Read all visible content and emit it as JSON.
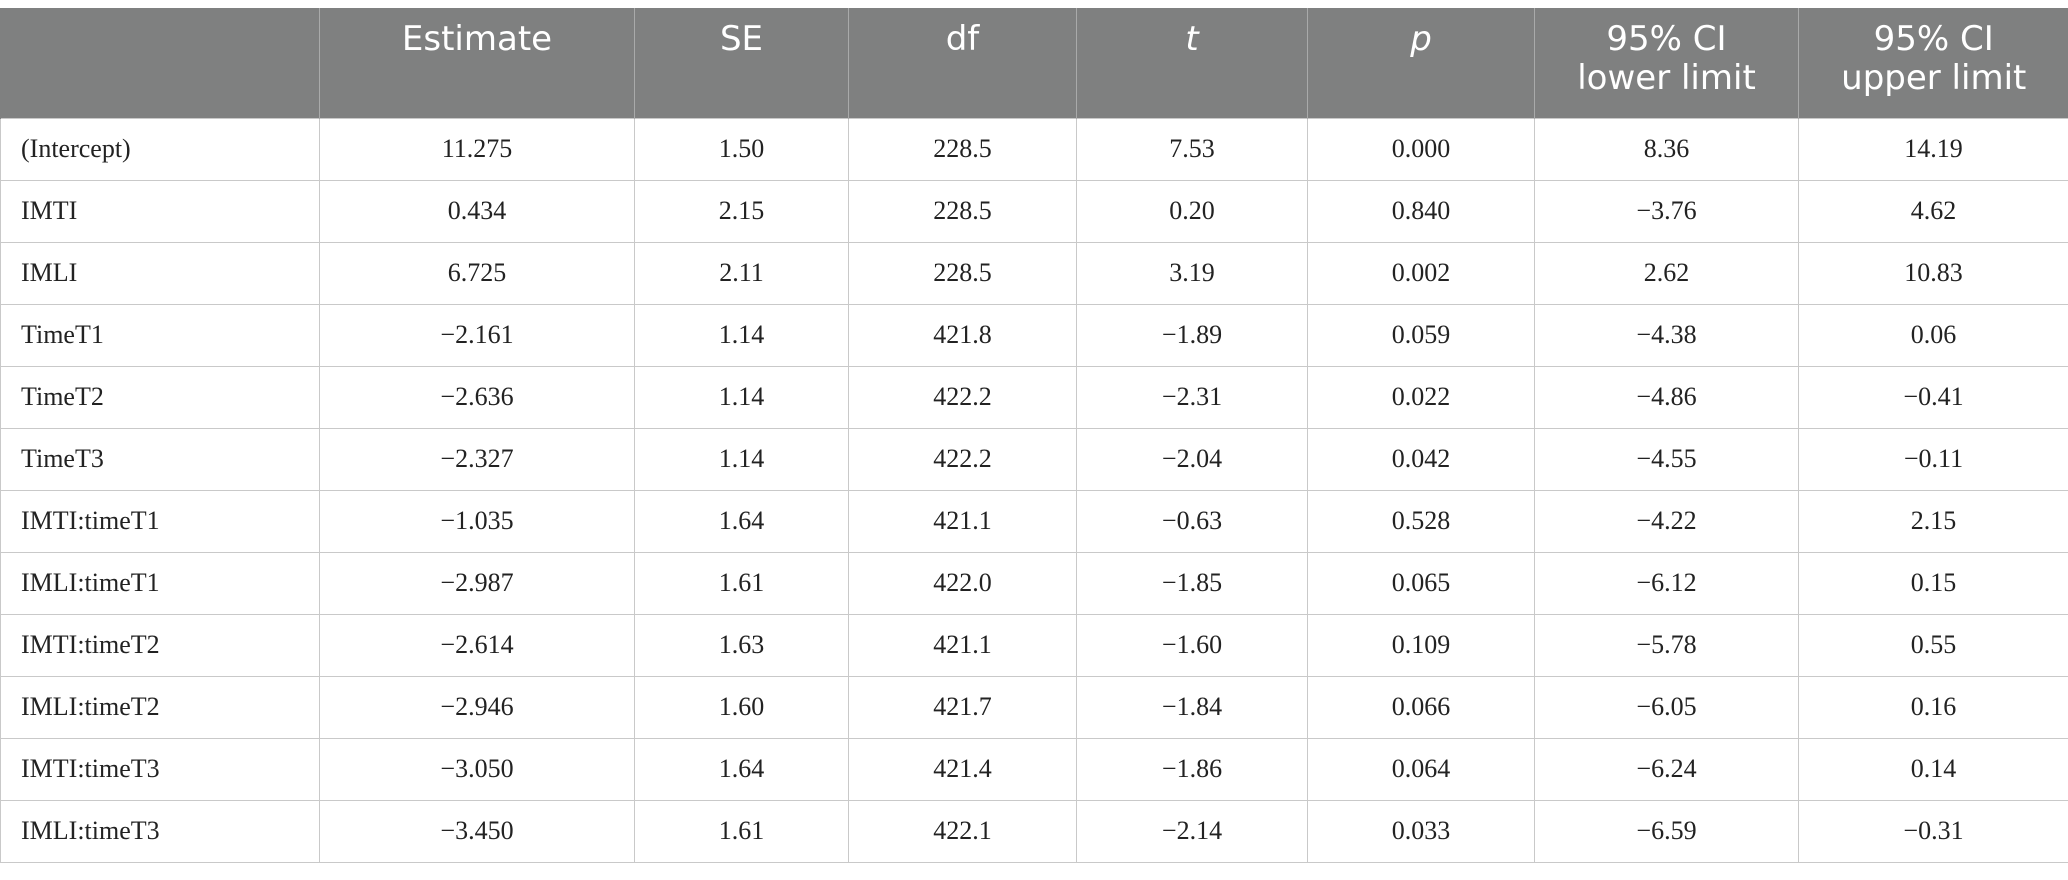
{
  "table": {
    "headers": [
      "",
      "Estimate",
      "SE",
      "df",
      "t",
      "p",
      "95% CI lower limit",
      "95% CI upper limit"
    ],
    "header_lines": [
      [
        ""
      ],
      [
        "Estimate"
      ],
      [
        "SE"
      ],
      [
        "df"
      ],
      [
        "t"
      ],
      [
        "p"
      ],
      [
        "95% CI",
        "lower limit"
      ],
      [
        "95% CI",
        "upper limit"
      ]
    ],
    "rows": [
      [
        "(Intercept)",
        "11.275",
        "1.50",
        "228.5",
        "7.53",
        "0.000",
        "8.36",
        "14.19"
      ],
      [
        "IMTI",
        "0.434",
        "2.15",
        "228.5",
        "0.20",
        "0.840",
        "−3.76",
        "4.62"
      ],
      [
        "IMLI",
        "6.725",
        "2.11",
        "228.5",
        "3.19",
        "0.002",
        "2.62",
        "10.83"
      ],
      [
        "TimeT1",
        "−2.161",
        "1.14",
        "421.8",
        "−1.89",
        "0.059",
        "−4.38",
        "0.06"
      ],
      [
        "TimeT2",
        "−2.636",
        "1.14",
        "422.2",
        "−2.31",
        "0.022",
        "−4.86",
        "−0.41"
      ],
      [
        "TimeT3",
        "−2.327",
        "1.14",
        "422.2",
        "−2.04",
        "0.042",
        "−4.55",
        "−0.11"
      ],
      [
        "IMTI:timeT1",
        "−1.035",
        "1.64",
        "421.1",
        "−0.63",
        "0.528",
        "−4.22",
        "2.15"
      ],
      [
        "IMLI:timeT1",
        "−2.987",
        "1.61",
        "422.0",
        "−1.85",
        "0.065",
        "−6.12",
        "0.15"
      ],
      [
        "IMTI:timeT2",
        "−2.614",
        "1.63",
        "421.1",
        "−1.60",
        "0.109",
        "−5.78",
        "0.55"
      ],
      [
        "IMLI:timeT2",
        "−2.946",
        "1.60",
        "421.7",
        "−1.84",
        "0.066",
        "−6.05",
        "0.16"
      ],
      [
        "IMTI:timeT3",
        "−3.050",
        "1.64",
        "421.4",
        "−1.86",
        "0.064",
        "−6.24",
        "0.14"
      ],
      [
        "IMLI:timeT3",
        "−3.450",
        "1.61",
        "422.1",
        "−2.14",
        "0.033",
        "−6.59",
        "−0.31"
      ]
    ]
  },
  "colors": {
    "header_background": "#7f8080",
    "header_text": "#ffffff",
    "grid_line": "#c9c9c9",
    "body_text": "#222222"
  }
}
